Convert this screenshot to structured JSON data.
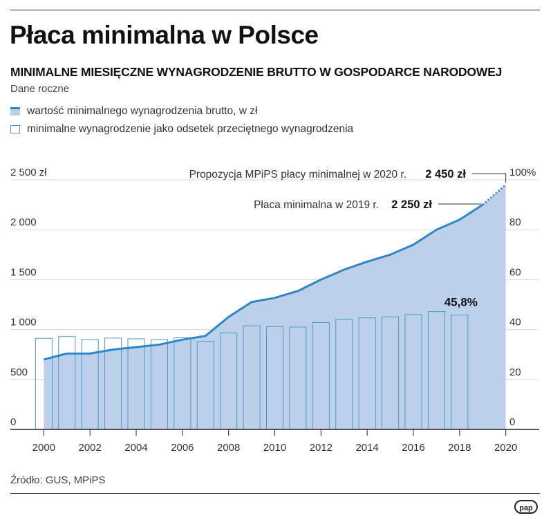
{
  "header": {
    "title": "Płaca minimalna w Polsce",
    "subtitle": "MINIMALNE MIESIĘCZNE WYNAGRODZENIE BRUTTO W GOSPODARCE NARODOWEJ",
    "note": "Dane roczne"
  },
  "legend": {
    "area_label": "wartość minimalnego wynagrodzenia brutto, w zł",
    "bar_label": "minimalne wynagrodzenie jako odsetek przeciętnego wynagrodzenia"
  },
  "source": "Źródło: GUS, MPiPS",
  "logo": "pap",
  "colors": {
    "line": "#2f86c6",
    "area": "#bdd0ea",
    "bar_stroke": "#4a9ac9",
    "grid": "#d9d9d9",
    "axis": "#222222"
  },
  "chart_data": {
    "type": "area",
    "title": "Płaca minimalna w Polsce",
    "x": [
      2000,
      2001,
      2002,
      2003,
      2004,
      2005,
      2006,
      2007,
      2008,
      2009,
      2010,
      2011,
      2012,
      2013,
      2014,
      2015,
      2016,
      2017,
      2018,
      2019,
      2020
    ],
    "x_tick_labels": [
      "2000",
      "2002",
      "2004",
      "2006",
      "2008",
      "2010",
      "2012",
      "2014",
      "2016",
      "2018",
      "2020"
    ],
    "x_tick_values": [
      2000,
      2002,
      2004,
      2006,
      2008,
      2010,
      2012,
      2014,
      2016,
      2018,
      2020
    ],
    "xlim": [
      1999.6,
      2020.1
    ],
    "series": [
      {
        "name": "wartość minimalnego wynagrodzenia brutto, w zł",
        "type": "area",
        "axis": "left",
        "x": [
          2000,
          2001,
          2002,
          2003,
          2004,
          2005,
          2006,
          2007,
          2008,
          2009,
          2010,
          2011,
          2012,
          2013,
          2014,
          2015,
          2016,
          2017,
          2018,
          2019,
          2020
        ],
        "values": [
          700,
          760,
          760,
          800,
          824,
          849,
          899,
          936,
          1126,
          1276,
          1317,
          1386,
          1500,
          1600,
          1680,
          1750,
          1850,
          2000,
          2100,
          2250,
          2450
        ],
        "projected_from": 2019
      },
      {
        "name": "minimalne wynagrodzenie jako odsetek przeciętnego wynagrodzenia",
        "type": "bar",
        "axis": "right",
        "x": [
          2000,
          2001,
          2002,
          2003,
          2004,
          2005,
          2006,
          2007,
          2008,
          2009,
          2010,
          2011,
          2012,
          2013,
          2014,
          2015,
          2016,
          2017,
          2018
        ],
        "values": [
          36.5,
          37.2,
          36.0,
          36.6,
          36.3,
          36.0,
          36.7,
          35.2,
          38.7,
          41.5,
          41.2,
          41.0,
          42.8,
          44.1,
          44.7,
          45.1,
          46.0,
          47.2,
          45.8
        ]
      }
    ],
    "y_left": {
      "ylim": [
        0,
        2500
      ],
      "ticks": [
        0,
        500,
        1000,
        1500,
        2000,
        2500
      ],
      "tick_labels": [
        "0",
        "500",
        "1 000",
        "1 500",
        "2 000",
        "2 500 zł"
      ]
    },
    "y_right": {
      "ylim": [
        0,
        100
      ],
      "ticks": [
        0,
        20,
        40,
        60,
        80,
        100
      ],
      "tick_labels": [
        "0",
        "20",
        "40",
        "60",
        "80",
        "100%"
      ]
    },
    "grid": true,
    "annotations": [
      {
        "x": 2020,
        "y": 2450,
        "label": "Propozycja MPiPS płacy minimalnej w 2020 r.",
        "value": "2 450 zł"
      },
      {
        "x": 2019,
        "y": 2250,
        "label": "Płaca minimalna w 2019 r.",
        "value": "2 250 zł"
      },
      {
        "x": 2018,
        "y": 45.8,
        "label": "45,8%"
      }
    ]
  }
}
